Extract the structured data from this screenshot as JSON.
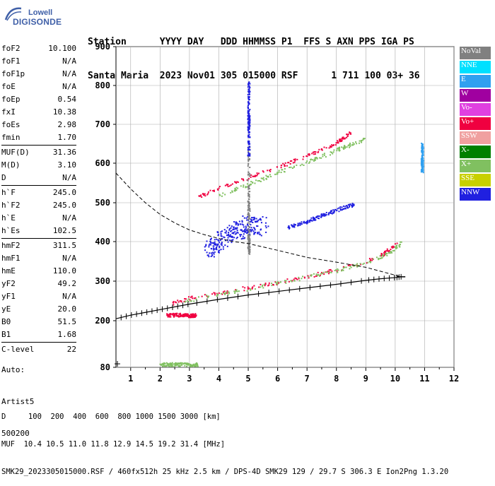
{
  "logo": {
    "line1": "Lowell",
    "line2": "DIGISONDE"
  },
  "header": {
    "line1": "Station      YYYY DAY   DDD HHMMSS P1  FFS S AXN PPS IGA PS",
    "line2": "Santa Maria  2023 Nov01 305 015000 RSF      1 711 100 03+ 36"
  },
  "params": [
    [
      [
        "foF2",
        "10.100"
      ],
      [
        "foF1",
        "N/A"
      ],
      [
        "foF1p",
        "N/A"
      ],
      [
        "foE",
        "N/A"
      ],
      [
        "foEp",
        "0.54"
      ],
      [
        "fxI",
        "10.38"
      ],
      [
        "foEs",
        "2.98"
      ],
      [
        "fmin",
        "1.70"
      ]
    ],
    [
      [
        "MUF(D)",
        "31.36"
      ],
      [
        "M(D)",
        "3.10"
      ],
      [
        "D",
        "N/A"
      ]
    ],
    [
      [
        "h`F",
        "245.0"
      ],
      [
        "h`F2",
        "245.0"
      ],
      [
        "h`E",
        "N/A"
      ],
      [
        "h`Es",
        "102.5"
      ]
    ],
    [
      [
        "hmF2",
        "311.5"
      ],
      [
        "hmF1",
        "N/A"
      ],
      [
        "hmE",
        "110.0"
      ],
      [
        "yF2",
        "49.2"
      ],
      [
        "yF1",
        "N/A"
      ],
      [
        "yE",
        "20.0"
      ],
      [
        "B0",
        "51.5"
      ],
      [
        "B1",
        "1.68"
      ]
    ],
    [
      [
        "C-level",
        "22"
      ]
    ]
  ],
  "auto": {
    "line1": "Auto:",
    "line2": "Artist5",
    "line3": "500200"
  },
  "legend": [
    {
      "label": "NoVal",
      "color": "#808080"
    },
    {
      "label": "NNE",
      "color": "#00e0ff"
    },
    {
      "label": "E",
      "color": "#30a0f0"
    },
    {
      "label": "W",
      "color": "#a000a0"
    },
    {
      "label": "Vo-",
      "color": "#e040e0"
    },
    {
      "label": "Vo+",
      "color": "#f00040"
    },
    {
      "label": "SSW",
      "color": "#f0a0a0"
    },
    {
      "label": "X-",
      "color": "#008000"
    },
    {
      "label": "X+",
      "color": "#80c060"
    },
    {
      "label": "SSE",
      "color": "#c8d000"
    },
    {
      "label": "NNW",
      "color": "#2020e0"
    }
  ],
  "footer": {
    "line1": "D     100  200  400  600  800 1000 1500 3000 [km]",
    "line2": "MUF  10.4 10.5 11.0 11.8 12.9 14.5 19.2 31.4 [MHz]",
    "line3": "SMK29_2023305015000.RSF / 460fx512h 25 kHz 2.5 km / DPS-4D SMK29 129 / 29.7 S 306.3 E Ion2Png 1.3.20"
  },
  "chart_data": {
    "type": "scatter",
    "title": "",
    "xlabel": "",
    "ylabel": "",
    "xlim": [
      0.5,
      12
    ],
    "ylim": [
      80,
      900
    ],
    "xticks": [
      1,
      2,
      3,
      4,
      5,
      6,
      7,
      8,
      9,
      10,
      11,
      12
    ],
    "yticks": [
      80,
      200,
      300,
      400,
      500,
      600,
      700,
      800,
      900
    ],
    "grid": true,
    "legend_position": "right",
    "series": [
      {
        "name": "Vo+",
        "color": "#f00040",
        "kind": "trace",
        "x": [
          2.4,
          3,
          4,
          5,
          6,
          7,
          8,
          9,
          9.6,
          10.1
        ],
        "y": [
          245,
          258,
          272,
          285,
          298,
          313,
          330,
          350,
          372,
          398
        ]
      },
      {
        "name": "X+",
        "color": "#80c060",
        "kind": "trace",
        "x": [
          2.8,
          4,
          5,
          6,
          7,
          8,
          9,
          9.8,
          10.2
        ],
        "y": [
          250,
          268,
          282,
          296,
          312,
          328,
          348,
          372,
          398
        ]
      },
      {
        "name": "Vo+",
        "color": "#f00040",
        "kind": "trace",
        "x": [
          3.3,
          4,
          5,
          6,
          7,
          8,
          8.5
        ],
        "y": [
          518,
          538,
          565,
          592,
          620,
          655,
          680
        ]
      },
      {
        "name": "X+",
        "color": "#80c060",
        "kind": "trace",
        "x": [
          4,
          5,
          6,
          7,
          8,
          9
        ],
        "y": [
          520,
          548,
          578,
          605,
          635,
          665
        ]
      },
      {
        "name": "NNW",
        "color": "#2020e0",
        "kind": "cluster",
        "x": [
          3.6,
          4,
          4.5,
          5,
          5.5
        ],
        "y": [
          380,
          400,
          425,
          445,
          440
        ]
      },
      {
        "name": "NNW",
        "color": "#2020e0",
        "kind": "trace",
        "x": [
          6.3,
          6.8,
          7.2,
          7.7,
          8.2,
          8.6
        ],
        "y": [
          438,
          448,
          460,
          475,
          488,
          498
        ]
      },
      {
        "name": "Vo+",
        "color": "#f00040",
        "kind": "trace",
        "x": [
          2.2,
          2.6,
          3,
          3.2
        ],
        "y": [
          215,
          216,
          214,
          215
        ]
      },
      {
        "name": "X+",
        "color": "#80c060",
        "kind": "trace",
        "x": [
          2,
          2.5,
          3,
          3.3
        ],
        "y": [
          89,
          89,
          88,
          89
        ]
      },
      {
        "name": "NoVal",
        "color": "#808080",
        "kind": "trace",
        "x": [
          5,
          5,
          5,
          5
        ],
        "y": [
          370,
          420,
          520,
          640
        ]
      },
      {
        "name": "NNW",
        "color": "#2020e0",
        "kind": "trace",
        "x": [
          5,
          5,
          5,
          5
        ],
        "y": [
          620,
          690,
          740,
          810
        ]
      },
      {
        "name": "E",
        "color": "#30a0f0",
        "kind": "trace",
        "x": [
          10.9,
          10.9,
          10.9
        ],
        "y": [
          580,
          610,
          650
        ]
      }
    ],
    "true_height_profile": {
      "x": [
        0.5,
        1,
        1.5,
        2,
        2.5,
        3,
        4,
        5,
        6,
        7,
        8,
        9,
        9.5,
        10,
        10.2
      ],
      "y": [
        205,
        214,
        221,
        228,
        235,
        242,
        254,
        265,
        274,
        283,
        292,
        302,
        306,
        309,
        311
      ]
    },
    "ne_profile": {
      "x": [
        0.5,
        1,
        1.5,
        2,
        2.5,
        3,
        3.5,
        4,
        4.5,
        5,
        6,
        7,
        8,
        9,
        9.5,
        10.2
      ],
      "y": [
        575,
        535,
        500,
        470,
        448,
        430,
        418,
        408,
        400,
        395,
        378,
        360,
        348,
        335,
        325,
        311
      ]
    }
  }
}
